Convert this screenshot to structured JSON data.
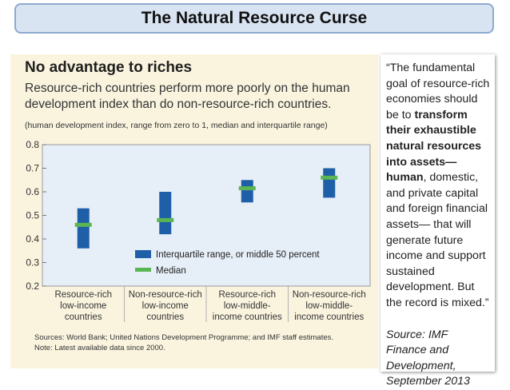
{
  "slide": {
    "title": "The Natural Resource Curse"
  },
  "figure": {
    "title": "No advantage to riches",
    "subtitle": "Resource-rich countries perform more poorly on the human development index than do non-resource-rich countries.",
    "note_paren": "(human development index, range from zero to 1, median and interquartile range)",
    "sources_line1": "Sources: World Bank; United Nations Development Programme; and IMF staff estimates.",
    "sources_line2": "Note: Latest available data since 2000."
  },
  "chart_data": {
    "type": "boxplot",
    "categories": [
      [
        "Resource-rich",
        "low-income",
        "countries"
      ],
      [
        "Non-resource-rich",
        "low-income",
        "countries"
      ],
      [
        "Resource-rich",
        "low-middle-",
        "income countries"
      ],
      [
        "Non-resource-rich",
        "low-middle-",
        "income countries"
      ]
    ],
    "series": [
      {
        "name": "Interquartile range, or middle 50 percent",
        "color": "#1f5fa8",
        "low": [
          0.36,
          0.42,
          0.555,
          0.575
        ],
        "high": [
          0.53,
          0.6,
          0.65,
          0.7
        ]
      },
      {
        "name": "Median",
        "color": "#5ab552",
        "values": [
          0.46,
          0.48,
          0.615,
          0.66
        ]
      }
    ],
    "ylim": [
      0.2,
      0.8
    ],
    "yticks": [
      "0.2",
      "0.3",
      "0.4",
      "0.5",
      "0.6",
      "0.7",
      "0.8"
    ],
    "grid": false,
    "legend_position": "bottom-right"
  },
  "quote": {
    "p1": "“The fundamental goal of resource-rich economies should be to ",
    "bold": "transform their exhaustible natural resources into assets— human",
    "p2": ", domestic, and private capital and foreign financial assets— that will generate future income and support sustained development. But the record is mixed.”",
    "source": "Source: IMF Finance and Development, September 2013"
  }
}
